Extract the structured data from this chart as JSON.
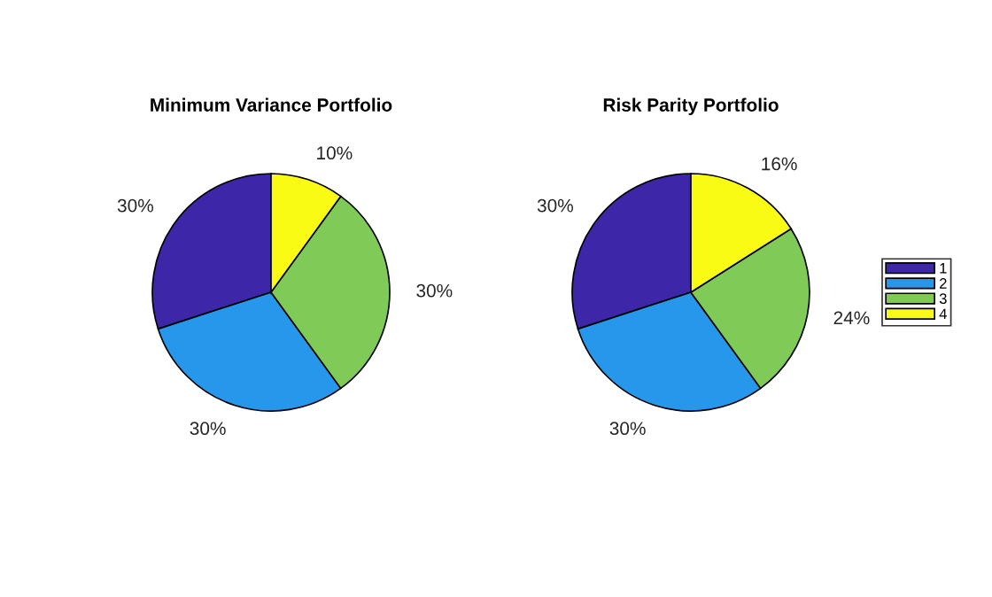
{
  "chart_data": [
    {
      "type": "pie",
      "title": "Minimum Variance Portfolio",
      "values": [
        30,
        30,
        30,
        10
      ],
      "value_labels": [
        "30%",
        "30%",
        "30%",
        "10%"
      ],
      "colors": [
        "#3e26a8",
        "#2797eb",
        "#80cb58",
        "#f9fb15"
      ]
    },
    {
      "type": "pie",
      "title": "Risk Parity Portfolio",
      "categories": [
        "1",
        "2",
        "3",
        "4"
      ],
      "values": [
        30,
        30,
        24,
        16
      ],
      "value_labels": [
        "30%",
        "30%",
        "24%",
        "16%"
      ],
      "colors": [
        "#3e26a8",
        "#2797eb",
        "#80cb58",
        "#f9fb15"
      ],
      "legend": "right"
    }
  ]
}
